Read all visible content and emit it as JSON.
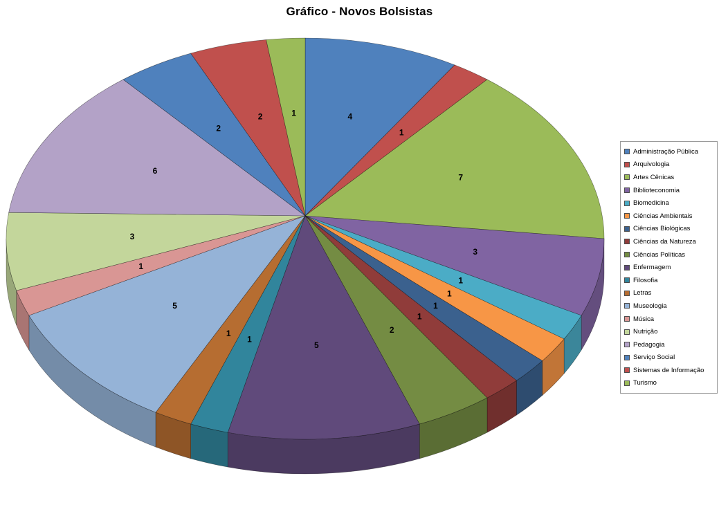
{
  "title": "Gráfico - Novos Bolsistas",
  "chart_data": {
    "type": "pie",
    "style": "3d-pie",
    "title": "Gráfico - Novos Bolsistas",
    "legend_position": "right",
    "direction": "clockwise",
    "start_angle_deg": 0,
    "data_labels": "value",
    "total": 48,
    "background": "#FFFFFF",
    "categories": [
      "Administração Pública",
      "Arquivologia",
      "Artes Cênicas",
      "Biblioteconomia",
      "Biomedicina",
      "Ciências Ambientais",
      "Ciências Biológicas",
      "Ciências da Natureza",
      "Ciências Políticas",
      "Enfermagem",
      "Filosofia",
      "Letras",
      "Museologia",
      "Música",
      "Nutrição",
      "Pedagogia",
      "Serviço Social",
      "Sistemas de Informação",
      "Turismo"
    ],
    "values": [
      4,
      1,
      7,
      3,
      1,
      1,
      1,
      1,
      2,
      5,
      1,
      1,
      5,
      1,
      3,
      6,
      2,
      2,
      1
    ],
    "colors": [
      "#4F81BD",
      "#C0504D",
      "#9BBB59",
      "#8064A2",
      "#4BACC6",
      "#F79646",
      "#3B618E",
      "#903C3A",
      "#748C43",
      "#604A7B",
      "#31859C",
      "#B66D31",
      "#95B3D7",
      "#D99694",
      "#C3D69B",
      "#B3A2C7",
      "#4F81BD",
      "#C0504D",
      "#9BBB59"
    ]
  }
}
